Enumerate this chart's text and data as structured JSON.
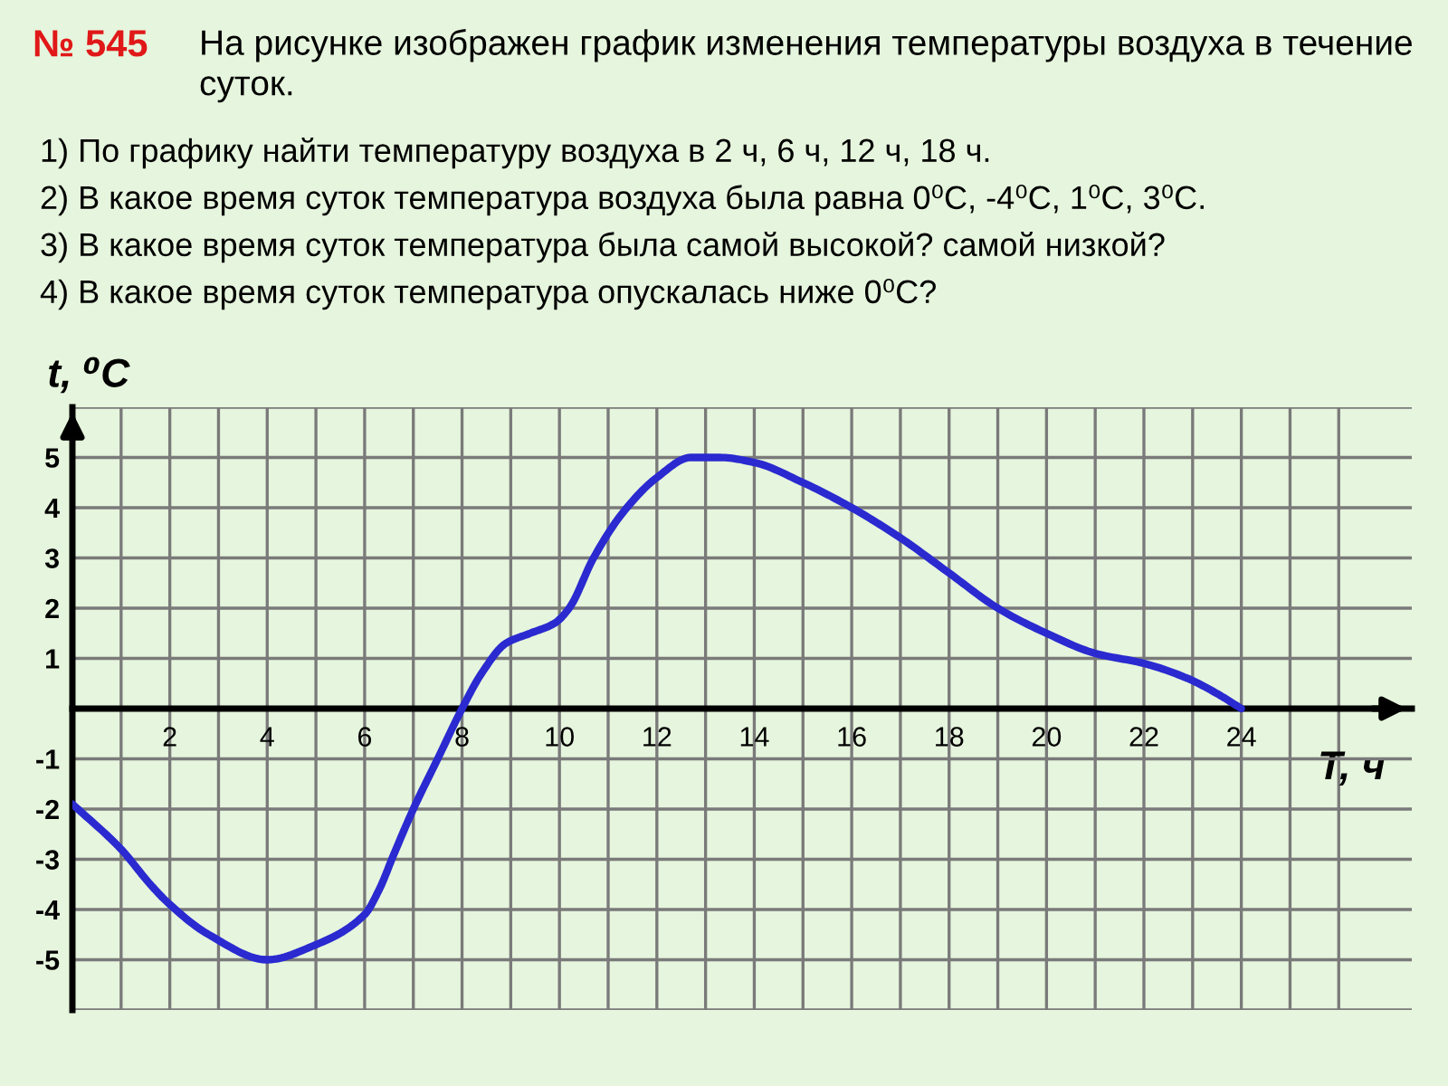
{
  "chart_data": {
    "type": "line",
    "title": "№ 545",
    "subtitle": "На рисунке изображен график изменения температуры воздуха в течение суток.",
    "xlabel": "T, ч",
    "ylabel": "t, ⁰C",
    "annotations": [
      "1) По графику найти температуру воздуха в 2 ч, 6 ч, 12 ч, 18 ч.",
      "2) В какое время суток температура воздуха была равна 0⁰С, -4⁰С, 1⁰С, 3⁰С.",
      "3) В какое время суток температура была самой высокой? самой низкой?",
      "4) В какое время суток температура опускалась ниже 0⁰C?"
    ],
    "x": [
      0,
      1,
      1.6,
      2,
      2.8,
      4,
      5,
      6,
      6.3,
      6.6,
      7,
      7.5,
      8,
      8.4,
      8.9,
      9.4,
      9.9,
      10.2,
      10.7,
      11.3,
      12,
      12.7,
      13.3,
      14,
      15,
      16,
      17,
      18,
      19,
      20,
      21,
      22,
      22.9,
      23.5,
      24
    ],
    "values": [
      -1.9,
      -2.8,
      -3.5,
      -3.9,
      -4.5,
      -5,
      -4.7,
      -4.1,
      -3.6,
      -2.9,
      -2,
      -1,
      0,
      0.7,
      1.3,
      1.5,
      1.7,
      2,
      3,
      3.9,
      4.6,
      5,
      5,
      4.9,
      4.5,
      4,
      3.4,
      2.7,
      2,
      1.5,
      1.1,
      0.9,
      0.6,
      0.3,
      0
    ],
    "color": "#2a2ad0",
    "xlim": [
      0,
      27.5
    ],
    "ylim": [
      -6,
      6
    ],
    "xticks": [
      {
        "value": 0,
        "label": null
      },
      {
        "value": 1,
        "label": null
      },
      2,
      {
        "value": 3,
        "label": null
      },
      4,
      {
        "value": 5,
        "label": null
      },
      6,
      {
        "value": 7,
        "label": null
      },
      8,
      {
        "value": 9,
        "label": null
      },
      10,
      {
        "value": 11,
        "label": null
      },
      12,
      {
        "value": 13,
        "label": null
      },
      14,
      {
        "value": 15,
        "label": null
      },
      16,
      {
        "value": 17,
        "label": null
      },
      18,
      {
        "value": 19,
        "label": null
      },
      20,
      {
        "value": 21,
        "label": null
      },
      22,
      {
        "value": 23,
        "label": null
      },
      24,
      {
        "value": 25,
        "label": null
      },
      {
        "value": 26,
        "label": null
      }
    ],
    "yticks": [
      {
        "value": -6,
        "label": null
      },
      -5,
      -4,
      -3,
      -2,
      -1,
      {
        "value": 0,
        "label": null
      },
      1,
      2,
      3,
      4,
      5,
      {
        "value": 6,
        "label": null
      }
    ],
    "grid": true
  }
}
